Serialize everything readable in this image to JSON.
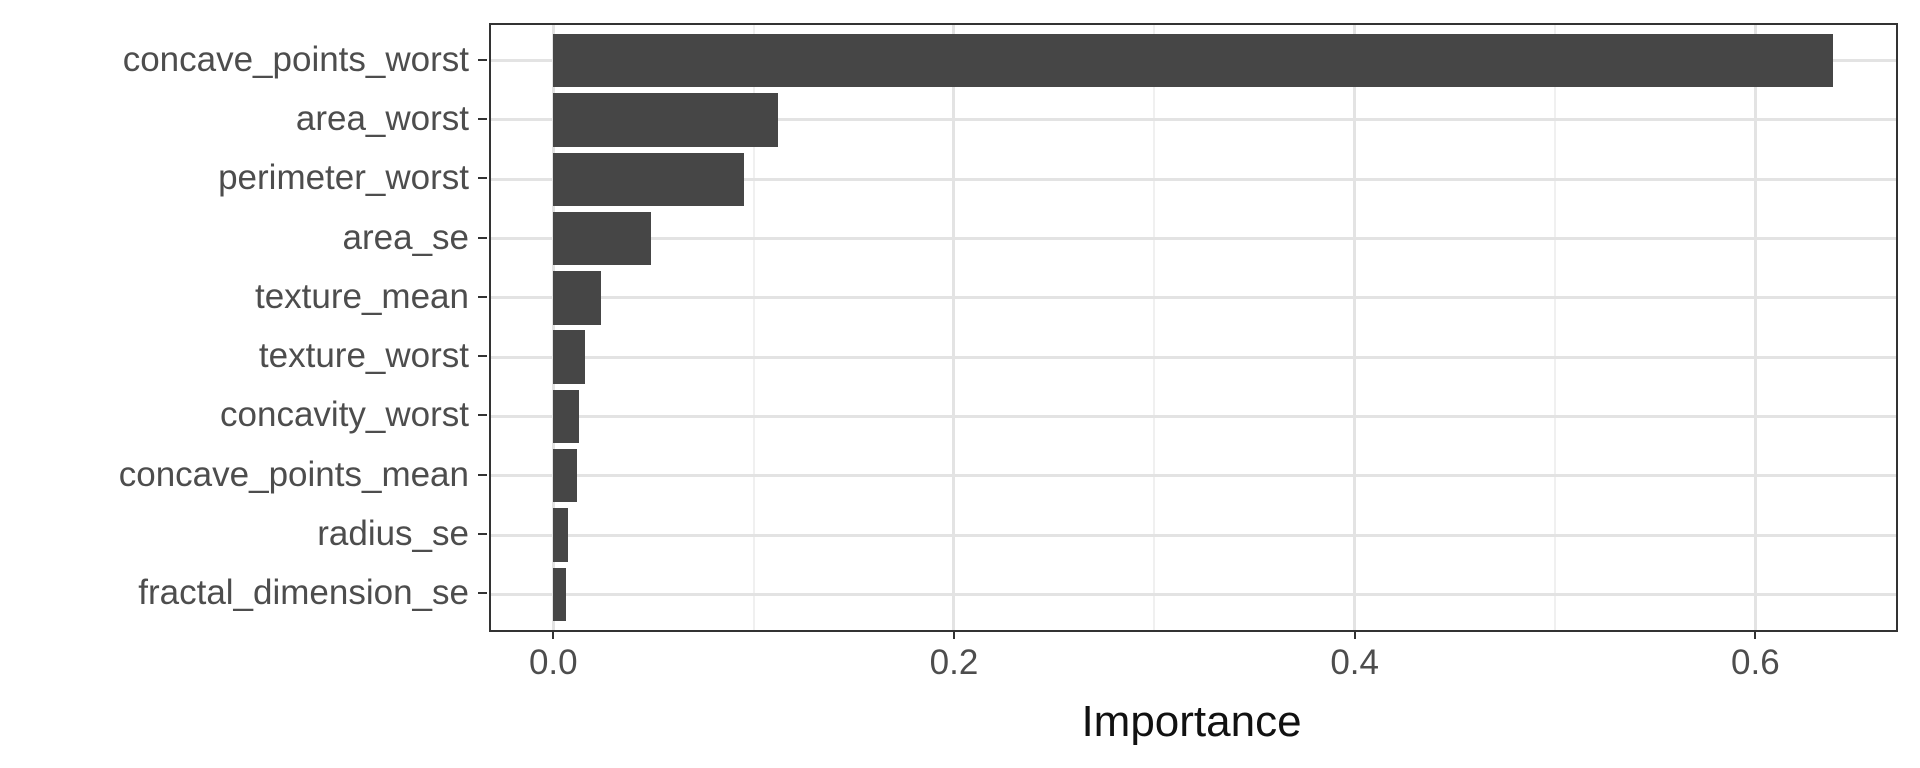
{
  "chart_data": {
    "type": "bar",
    "orientation": "horizontal",
    "title": "",
    "xlabel": "Importance",
    "ylabel": "",
    "categories": [
      "concave_points_worst",
      "area_worst",
      "perimeter_worst",
      "area_se",
      "texture_mean",
      "texture_worst",
      "concavity_worst",
      "concave_points_mean",
      "radius_se",
      "fractal_dimension_se"
    ],
    "values": [
      0.639,
      0.112,
      0.095,
      0.049,
      0.024,
      0.016,
      0.013,
      0.012,
      0.0075,
      0.0063
    ],
    "xlim": [
      -0.0311,
      0.6702
    ],
    "x_major_ticks": [
      0.0,
      0.2,
      0.4,
      0.6
    ],
    "x_tick_labels": [
      "0.0",
      "0.2",
      "0.4",
      "0.6"
    ],
    "x_minor_ticks": [
      0.1,
      0.3,
      0.5
    ],
    "grid": "major-and-minor-vertical, major-horizontal",
    "legend": "none",
    "colors": {
      "bar_fill": "#464646",
      "panel_border": "#333333",
      "grid_major": "#e3e3e3",
      "grid_minor": "#f0f0f0",
      "axis_text": "#4d4d4d",
      "axis_title": "#111111",
      "background": "#ffffff"
    }
  }
}
